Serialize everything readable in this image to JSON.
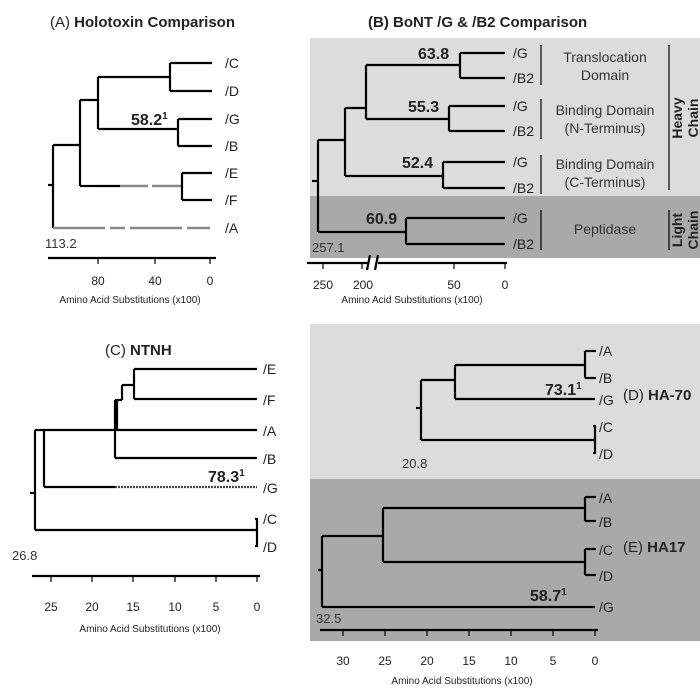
{
  "panelA": {
    "title_prefix": "(A) ",
    "title_bold": "Holotoxin Comparison",
    "leaves": [
      "/C",
      "/D",
      "/G",
      "/B",
      "/E",
      "/F",
      "/A"
    ],
    "node_value": "58.2",
    "node_sup": "1",
    "root_value": "113.2",
    "ticks": [
      "80",
      "40",
      "0"
    ],
    "axis_label": "Amino Acid Substitutions (x100)"
  },
  "panelB": {
    "title": "(B) BoNT /G & /B2 Comparison",
    "leaves": [
      "/G",
      "/B2",
      "/G",
      "/B2",
      "/G",
      "/B2",
      "/G",
      "/B2"
    ],
    "node_values": [
      "63.8",
      "55.3",
      "52.4",
      "60.9"
    ],
    "domains": [
      [
        "Translocation",
        "Domain"
      ],
      [
        "Binding Domain",
        "(N-Terminus)"
      ],
      [
        "Binding Domain",
        "(C-Terminus)"
      ],
      [
        "Peptidase"
      ]
    ],
    "heavy_chain": [
      "Heavy",
      "Chain"
    ],
    "light_chain": [
      "Light",
      "Chain"
    ],
    "root_value": "257.1",
    "ticks": [
      "250",
      "200",
      "50",
      "0"
    ],
    "axis_label": "Amino Acid Substitutions (x100)",
    "colors": {
      "heavy_bg": "#dcdcdc",
      "light_bg": "#a9a9a9"
    }
  },
  "panelC": {
    "title_prefix": "(C) ",
    "title_bold": "NTNH",
    "leaves": [
      "/E",
      "/F",
      "/A",
      "/B",
      "/G",
      "/C",
      "/D"
    ],
    "node_value": "78.3",
    "node_sup": "1",
    "root_value": "26.8",
    "ticks": [
      "25",
      "20",
      "15",
      "10",
      "5",
      "0"
    ],
    "axis_label": "Amino Acid Substitutions (x100)"
  },
  "panelD": {
    "label_prefix": "(D) ",
    "label_bold": "HA-70",
    "leaves": [
      "/A",
      "/B",
      "/G",
      "/C",
      "/D"
    ],
    "node_value": "73.1",
    "node_sup": "1",
    "root_value": "20.8",
    "colors": {
      "bg": "#dcdcdc"
    }
  },
  "panelE": {
    "label_prefix": "(E) ",
    "label_bold": "HA17",
    "leaves": [
      "/A",
      "/B",
      "/C",
      "/D",
      "/G"
    ],
    "node_value": "58.7",
    "node_sup": "1",
    "root_value": "32.5",
    "ticks": [
      "30",
      "25",
      "20",
      "15",
      "10",
      "5",
      "0"
    ],
    "axis_label": "Amino Acid Substitutions (x100)",
    "colors": {
      "bg": "#a9a9a9"
    }
  }
}
